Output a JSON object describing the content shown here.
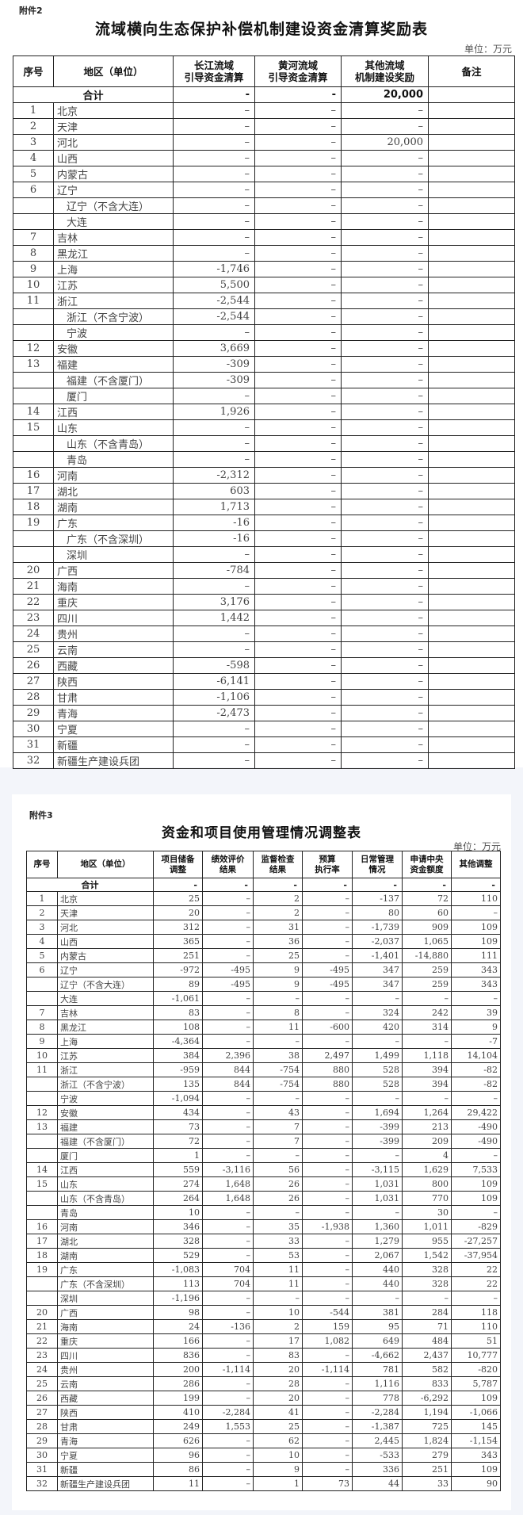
{
  "doc1": {
    "attachment": "附件2",
    "title": "流域横向生态保护补偿机制建设资金清算奖励表",
    "unit": "单位：万元",
    "headers": [
      "序号",
      "地区（单位）",
      "长江流域\n引导资金清算",
      "黄河流域\n引导资金清算",
      "其他流域\n机制建设奖励",
      "备注"
    ],
    "total": {
      "label": "合计",
      "values": [
        "-",
        "-",
        "20,000",
        ""
      ]
    },
    "rows": [
      {
        "seq": "1",
        "region": "北京",
        "values": [
          "–",
          "–",
          "–",
          ""
        ]
      },
      {
        "seq": "2",
        "region": "天津",
        "values": [
          "–",
          "–",
          "–",
          ""
        ]
      },
      {
        "seq": "3",
        "region": "河北",
        "values": [
          "–",
          "–",
          "20,000",
          ""
        ]
      },
      {
        "seq": "4",
        "region": "山西",
        "values": [
          "–",
          "–",
          "–",
          ""
        ]
      },
      {
        "seq": "5",
        "region": "内蒙古",
        "values": [
          "–",
          "–",
          "–",
          ""
        ]
      },
      {
        "seq": "6",
        "region": "辽宁",
        "values": [
          "–",
          "–",
          "–",
          ""
        ]
      },
      {
        "seq": "",
        "region": "辽宁（不含大连）",
        "sub": true,
        "values": [
          "–",
          "–",
          "–",
          ""
        ]
      },
      {
        "seq": "",
        "region": "大连",
        "sub": true,
        "values": [
          "–",
          "–",
          "–",
          ""
        ]
      },
      {
        "seq": "7",
        "region": "吉林",
        "values": [
          "–",
          "–",
          "–",
          ""
        ]
      },
      {
        "seq": "8",
        "region": "黑龙江",
        "values": [
          "–",
          "–",
          "–",
          ""
        ]
      },
      {
        "seq": "9",
        "region": "上海",
        "values": [
          "-1,746",
          "–",
          "–",
          ""
        ]
      },
      {
        "seq": "10",
        "region": "江苏",
        "values": [
          "5,500",
          "–",
          "–",
          ""
        ]
      },
      {
        "seq": "11",
        "region": "浙江",
        "values": [
          "-2,544",
          "–",
          "–",
          ""
        ]
      },
      {
        "seq": "",
        "region": "浙江（不含宁波）",
        "sub": true,
        "values": [
          "-2,544",
          "–",
          "–",
          ""
        ]
      },
      {
        "seq": "",
        "region": "宁波",
        "sub": true,
        "values": [
          "–",
          "–",
          "–",
          ""
        ]
      },
      {
        "seq": "12",
        "region": "安徽",
        "values": [
          "3,669",
          "–",
          "–",
          ""
        ]
      },
      {
        "seq": "13",
        "region": "福建",
        "values": [
          "-309",
          "–",
          "–",
          ""
        ]
      },
      {
        "seq": "",
        "region": "福建（不含厦门）",
        "sub": true,
        "values": [
          "-309",
          "–",
          "–",
          ""
        ]
      },
      {
        "seq": "",
        "region": "厦门",
        "sub": true,
        "values": [
          "–",
          "–",
          "–",
          ""
        ]
      },
      {
        "seq": "14",
        "region": "江西",
        "values": [
          "1,926",
          "–",
          "–",
          ""
        ]
      },
      {
        "seq": "15",
        "region": "山东",
        "values": [
          "–",
          "–",
          "–",
          ""
        ]
      },
      {
        "seq": "",
        "region": "山东（不含青岛）",
        "sub": true,
        "values": [
          "–",
          "–",
          "–",
          ""
        ]
      },
      {
        "seq": "",
        "region": "青岛",
        "sub": true,
        "values": [
          "–",
          "–",
          "–",
          ""
        ]
      },
      {
        "seq": "16",
        "region": "河南",
        "values": [
          "-2,312",
          "–",
          "–",
          ""
        ]
      },
      {
        "seq": "17",
        "region": "湖北",
        "values": [
          "603",
          "–",
          "–",
          ""
        ]
      },
      {
        "seq": "18",
        "region": "湖南",
        "values": [
          "1,713",
          "–",
          "–",
          ""
        ]
      },
      {
        "seq": "19",
        "region": "广东",
        "values": [
          "-16",
          "–",
          "–",
          ""
        ]
      },
      {
        "seq": "",
        "region": "广东（不含深圳）",
        "sub": true,
        "values": [
          "-16",
          "–",
          "–",
          ""
        ]
      },
      {
        "seq": "",
        "region": "深圳",
        "sub": true,
        "values": [
          "–",
          "–",
          "–",
          ""
        ]
      },
      {
        "seq": "20",
        "region": "广西",
        "values": [
          "-784",
          "–",
          "–",
          ""
        ]
      },
      {
        "seq": "21",
        "region": "海南",
        "values": [
          "–",
          "–",
          "–",
          ""
        ]
      },
      {
        "seq": "22",
        "region": "重庆",
        "values": [
          "3,176",
          "–",
          "–",
          ""
        ]
      },
      {
        "seq": "23",
        "region": "四川",
        "values": [
          "1,442",
          "–",
          "–",
          ""
        ]
      },
      {
        "seq": "24",
        "region": "贵州",
        "values": [
          "–",
          "–",
          "–",
          ""
        ]
      },
      {
        "seq": "25",
        "region": "云南",
        "values": [
          "–",
          "–",
          "–",
          ""
        ]
      },
      {
        "seq": "26",
        "region": "西藏",
        "values": [
          "-598",
          "–",
          "–",
          ""
        ]
      },
      {
        "seq": "27",
        "region": "陕西",
        "values": [
          "-6,141",
          "–",
          "–",
          ""
        ]
      },
      {
        "seq": "28",
        "region": "甘肃",
        "values": [
          "-1,106",
          "–",
          "–",
          ""
        ]
      },
      {
        "seq": "29",
        "region": "青海",
        "values": [
          "-2,473",
          "–",
          "–",
          ""
        ]
      },
      {
        "seq": "30",
        "region": "宁夏",
        "values": [
          "–",
          "–",
          "–",
          ""
        ]
      },
      {
        "seq": "31",
        "region": "新疆",
        "values": [
          "–",
          "–",
          "–",
          ""
        ]
      },
      {
        "seq": "32",
        "region": "新疆生产建设兵团",
        "values": [
          "–",
          "–",
          "–",
          ""
        ]
      }
    ]
  },
  "doc2": {
    "attachment": "附件3",
    "title": "资金和项目使用管理情况调整表",
    "unit": "单位：万元",
    "headers": [
      "序号",
      "地区（单位）",
      "项目储备\n调整",
      "绩效评价\n结果",
      "监督检查\n结果",
      "预算\n执行率",
      "日常管理\n情况",
      "申请中央\n资金额度",
      "其他调整"
    ],
    "total": {
      "label": "合计",
      "values": [
        "-",
        "-",
        "-",
        "-",
        "-",
        "-",
        "-"
      ]
    },
    "rows": [
      {
        "seq": "1",
        "region": "北京",
        "values": [
          "25",
          "–",
          "2",
          "–",
          "-137",
          "72",
          "110"
        ]
      },
      {
        "seq": "2",
        "region": "天津",
        "values": [
          "20",
          "–",
          "2",
          "–",
          "80",
          "60",
          "–"
        ]
      },
      {
        "seq": "3",
        "region": "河北",
        "values": [
          "312",
          "–",
          "31",
          "–",
          "-1,739",
          "909",
          "109"
        ]
      },
      {
        "seq": "4",
        "region": "山西",
        "values": [
          "365",
          "–",
          "36",
          "–",
          "-2,037",
          "1,065",
          "109"
        ]
      },
      {
        "seq": "5",
        "region": "内蒙古",
        "values": [
          "251",
          "–",
          "25",
          "–",
          "-1,401",
          "-14,880",
          "111"
        ]
      },
      {
        "seq": "6",
        "region": "辽宁",
        "values": [
          "-972",
          "-495",
          "9",
          "-495",
          "347",
          "259",
          "343"
        ]
      },
      {
        "seq": "",
        "region": "辽宁（不含大连）",
        "sub": true,
        "values": [
          "89",
          "-495",
          "9",
          "-495",
          "347",
          "259",
          "343"
        ]
      },
      {
        "seq": "",
        "region": "大连",
        "sub": true,
        "values": [
          "-1,061",
          "–",
          "–",
          "–",
          "–",
          "–",
          "–"
        ]
      },
      {
        "seq": "7",
        "region": "吉林",
        "values": [
          "83",
          "–",
          "8",
          "–",
          "324",
          "242",
          "39"
        ]
      },
      {
        "seq": "8",
        "region": "黑龙江",
        "values": [
          "108",
          "–",
          "11",
          "-600",
          "420",
          "314",
          "9"
        ]
      },
      {
        "seq": "9",
        "region": "上海",
        "values": [
          "-4,364",
          "–",
          "–",
          "–",
          "–",
          "–",
          "-7"
        ]
      },
      {
        "seq": "10",
        "region": "江苏",
        "values": [
          "384",
          "2,396",
          "38",
          "2,497",
          "1,499",
          "1,118",
          "14,104"
        ]
      },
      {
        "seq": "11",
        "region": "浙江",
        "values": [
          "-959",
          "844",
          "-754",
          "880",
          "528",
          "394",
          "-82"
        ]
      },
      {
        "seq": "",
        "region": "浙江（不含宁波）",
        "sub": true,
        "values": [
          "135",
          "844",
          "-754",
          "880",
          "528",
          "394",
          "-82"
        ]
      },
      {
        "seq": "",
        "region": "宁波",
        "sub": true,
        "values": [
          "-1,094",
          "–",
          "–",
          "–",
          "–",
          "–",
          "–"
        ]
      },
      {
        "seq": "12",
        "region": "安徽",
        "values": [
          "434",
          "–",
          "43",
          "–",
          "1,694",
          "1,264",
          "29,422"
        ]
      },
      {
        "seq": "13",
        "region": "福建",
        "values": [
          "73",
          "–",
          "7",
          "–",
          "-399",
          "213",
          "-490"
        ]
      },
      {
        "seq": "",
        "region": "福建（不含厦门）",
        "sub": true,
        "values": [
          "72",
          "–",
          "7",
          "–",
          "-399",
          "209",
          "-490"
        ]
      },
      {
        "seq": "",
        "region": "厦门",
        "sub": true,
        "values": [
          "1",
          "–",
          "–",
          "–",
          "–",
          "4",
          "–"
        ]
      },
      {
        "seq": "14",
        "region": "江西",
        "values": [
          "559",
          "-3,116",
          "56",
          "–",
          "-3,115",
          "1,629",
          "7,533"
        ]
      },
      {
        "seq": "15",
        "region": "山东",
        "values": [
          "274",
          "1,648",
          "26",
          "–",
          "1,031",
          "800",
          "109"
        ]
      },
      {
        "seq": "",
        "region": "山东（不含青岛）",
        "sub": true,
        "values": [
          "264",
          "1,648",
          "26",
          "–",
          "1,031",
          "770",
          "109"
        ]
      },
      {
        "seq": "",
        "region": "青岛",
        "sub": true,
        "values": [
          "10",
          "–",
          "–",
          "–",
          "–",
          "30",
          "–"
        ]
      },
      {
        "seq": "16",
        "region": "河南",
        "values": [
          "346",
          "–",
          "35",
          "-1,938",
          "1,360",
          "1,011",
          "-829"
        ]
      },
      {
        "seq": "17",
        "region": "湖北",
        "values": [
          "328",
          "–",
          "33",
          "–",
          "1,279",
          "955",
          "-27,257"
        ]
      },
      {
        "seq": "18",
        "region": "湖南",
        "values": [
          "529",
          "–",
          "53",
          "–",
          "2,067",
          "1,542",
          "-37,954"
        ]
      },
      {
        "seq": "19",
        "region": "广东",
        "values": [
          "-1,083",
          "704",
          "11",
          "–",
          "440",
          "328",
          "22"
        ]
      },
      {
        "seq": "",
        "region": "广东（不含深圳）",
        "sub": true,
        "values": [
          "113",
          "704",
          "11",
          "–",
          "440",
          "328",
          "22"
        ]
      },
      {
        "seq": "",
        "region": "深圳",
        "sub": true,
        "values": [
          "-1,196",
          "–",
          "–",
          "–",
          "–",
          "–",
          "–"
        ]
      },
      {
        "seq": "20",
        "region": "广西",
        "values": [
          "98",
          "–",
          "10",
          "-544",
          "381",
          "284",
          "118"
        ]
      },
      {
        "seq": "21",
        "region": "海南",
        "values": [
          "24",
          "-136",
          "2",
          "159",
          "95",
          "71",
          "110"
        ]
      },
      {
        "seq": "22",
        "region": "重庆",
        "values": [
          "166",
          "–",
          "17",
          "1,082",
          "649",
          "484",
          "51"
        ]
      },
      {
        "seq": "23",
        "region": "四川",
        "values": [
          "836",
          "–",
          "83",
          "–",
          "-4,662",
          "2,437",
          "10,777"
        ]
      },
      {
        "seq": "24",
        "region": "贵州",
        "values": [
          "200",
          "-1,114",
          "20",
          "-1,114",
          "781",
          "582",
          "-820"
        ]
      },
      {
        "seq": "25",
        "region": "云南",
        "values": [
          "286",
          "–",
          "28",
          "–",
          "1,116",
          "833",
          "5,787"
        ]
      },
      {
        "seq": "26",
        "region": "西藏",
        "values": [
          "199",
          "–",
          "20",
          "–",
          "778",
          "-6,292",
          "109"
        ]
      },
      {
        "seq": "27",
        "region": "陕西",
        "values": [
          "410",
          "-2,284",
          "41",
          "–",
          "-2,284",
          "1,194",
          "-1,066"
        ]
      },
      {
        "seq": "28",
        "region": "甘肃",
        "values": [
          "249",
          "1,553",
          "25",
          "–",
          "-1,387",
          "725",
          "145"
        ]
      },
      {
        "seq": "29",
        "region": "青海",
        "values": [
          "626",
          "–",
          "62",
          "–",
          "2,445",
          "1,824",
          "-1,154"
        ]
      },
      {
        "seq": "30",
        "region": "宁夏",
        "values": [
          "96",
          "–",
          "10",
          "–",
          "-533",
          "279",
          "343"
        ]
      },
      {
        "seq": "31",
        "region": "新疆",
        "values": [
          "86",
          "–",
          "9",
          "–",
          "336",
          "251",
          "109"
        ]
      },
      {
        "seq": "32",
        "region": "新疆生产建设兵团",
        "values": [
          "11",
          "–",
          "1",
          "73",
          "44",
          "33",
          "90"
        ]
      }
    ]
  }
}
